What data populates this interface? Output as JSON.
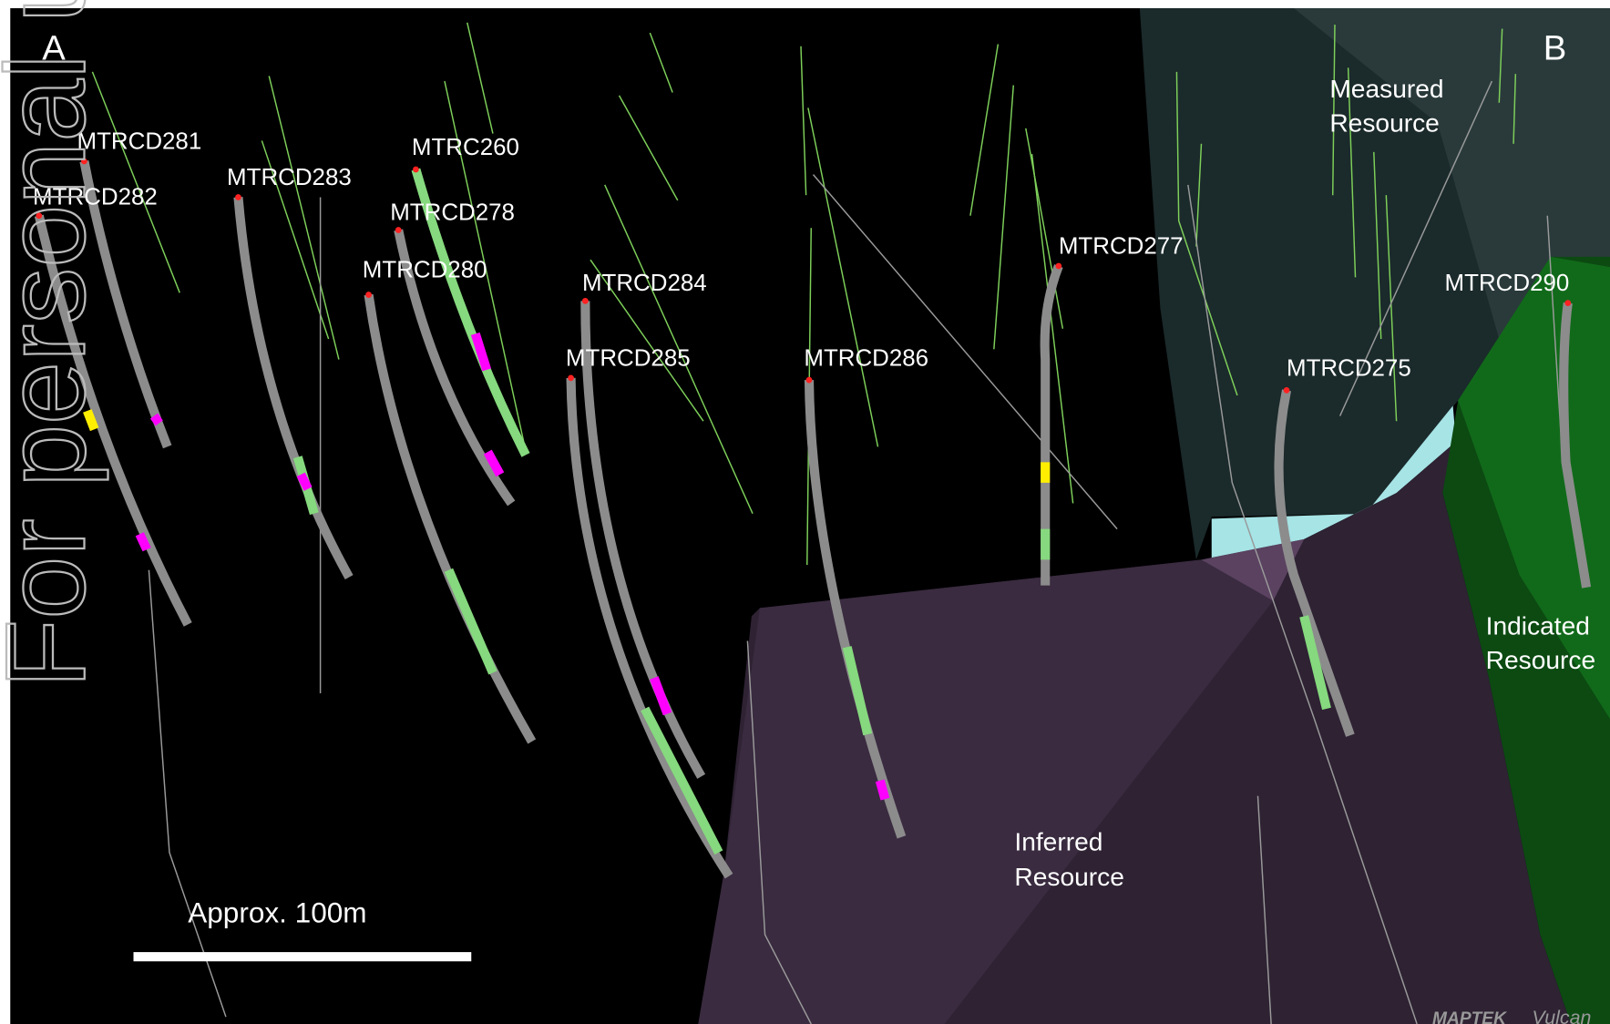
{
  "panel_labels": [
    "A",
    "B"
  ],
  "drillholes": [
    "MTRCD281",
    "MTRCD282",
    "MTRCD283",
    "MTRC260",
    "MTRCD278",
    "MTRCD280",
    "MTRCD284",
    "MTRCD285",
    "MTRCD286",
    "MTRCD277",
    "MTRCD275",
    "MTRCD290"
  ],
  "zones": [
    {
      "lines": [
        "Measured",
        "Resource"
      ]
    },
    {
      "lines": [
        "Indicated",
        "Resource"
      ]
    },
    {
      "lines": [
        "Inferred",
        "Resource"
      ]
    }
  ],
  "scale_bar": "Approx. 100m",
  "watermark": "For personal use only",
  "logo": [
    "MAPTEK",
    "Vulcan"
  ]
}
